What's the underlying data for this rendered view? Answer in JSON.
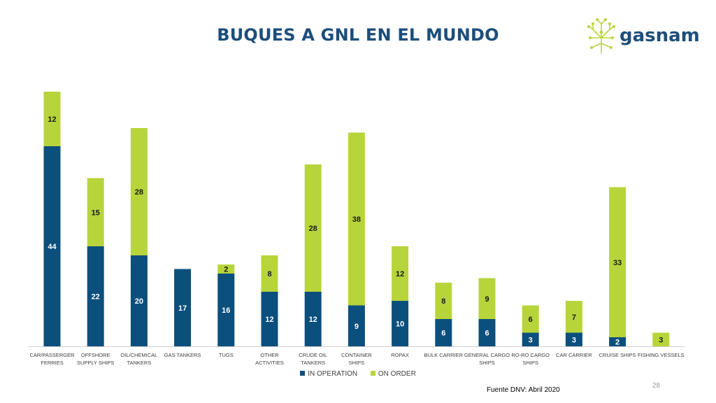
{
  "title": "BUQUES A GNL EN EL MUNDO",
  "logo": {
    "name": "gasnam"
  },
  "source": "Fuente DNV: Abril 2020",
  "page_number": "28",
  "colors": {
    "in_operation": "#0b4f7d",
    "on_order": "#b7d53a",
    "title": "#1d4e7a"
  },
  "chart_data": {
    "type": "bar",
    "stacked": true,
    "title": "BUQUES A GNL EN EL MUNDO",
    "categories": [
      [
        "CAR/PASSERGER",
        "FERRIES"
      ],
      [
        "OFFSHORE",
        "SUPPLY SHIPS"
      ],
      [
        "OIL/CHEMICAL",
        "TANKERS"
      ],
      [
        "GAS TANKERS"
      ],
      [
        "TUGS"
      ],
      [
        "OTHER",
        "ACTIVITIES"
      ],
      [
        "CRUDE OIL",
        "TANKERS"
      ],
      [
        "CONTAINER",
        "SHIPS"
      ],
      [
        "ROPAX"
      ],
      [
        "BULK CARRIER"
      ],
      [
        "GENERAL CARGO",
        "SHIPS"
      ],
      [
        "RO-RO CARGO",
        "SHIPS"
      ],
      [
        "CAR CARRIER"
      ],
      [
        "CRUISE SHIPS"
      ],
      [
        "FISHING VESSELS"
      ]
    ],
    "series": [
      {
        "name": "IN OPERATION",
        "values": [
          44,
          22,
          20,
          17,
          16,
          12,
          12,
          9,
          10,
          6,
          6,
          3,
          3,
          2,
          0
        ]
      },
      {
        "name": "ON ORDER",
        "values": [
          12,
          15,
          28,
          0,
          2,
          8,
          28,
          38,
          12,
          8,
          9,
          6,
          7,
          33,
          3
        ]
      }
    ],
    "ylim": [
      0,
      56
    ],
    "grid": false,
    "legend": "bottom"
  }
}
